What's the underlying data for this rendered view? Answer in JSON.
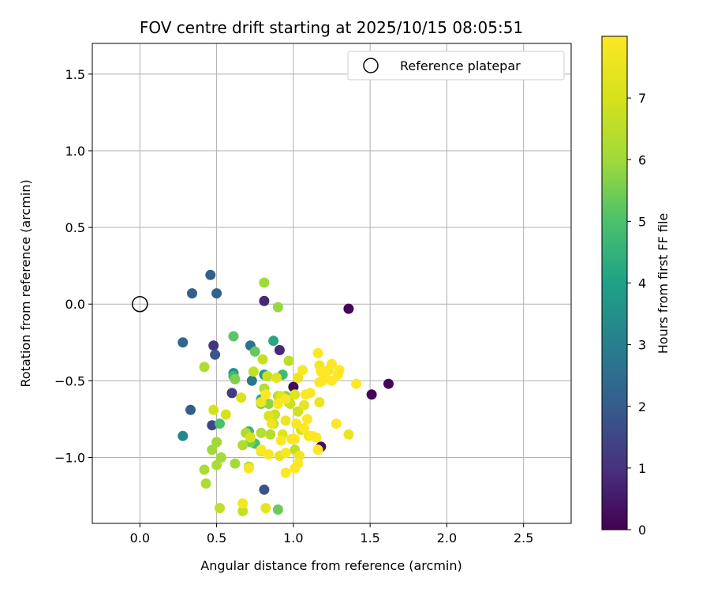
{
  "chart_data": {
    "type": "scatter",
    "title": "FOV centre drift starting at 2025/10/15 08:05:51",
    "xlabel": "Angular distance from reference (arcmin)",
    "ylabel": "Rotation from reference (arcmin)",
    "xlim": [
      -0.31,
      2.81
    ],
    "ylim": [
      -1.43,
      1.7
    ],
    "x_ticks": [
      0.0,
      0.5,
      1.0,
      1.5,
      2.0,
      2.5
    ],
    "x_tick_labels": [
      "0.0",
      "0.5",
      "1.0",
      "1.5",
      "2.0",
      "2.5"
    ],
    "y_ticks": [
      -1.0,
      -0.5,
      0.0,
      0.5,
      1.0,
      1.5
    ],
    "y_tick_labels": [
      "−1.0",
      "−0.5",
      "0.0",
      "0.5",
      "1.0",
      "1.5"
    ],
    "grid": true,
    "legend": {
      "position": "top-right",
      "entries": [
        "Reference platepar"
      ]
    },
    "reference_point": {
      "x": 0.0,
      "y": 0.0,
      "label": "Reference platepar"
    },
    "colorbar": {
      "label": "Hours from first FF file",
      "colormap": "viridis",
      "min": 0,
      "max": 8,
      "ticks": [
        0,
        1,
        2,
        3,
        4,
        5,
        6,
        7
      ],
      "tick_labels": [
        "0",
        "1",
        "2",
        "3",
        "4",
        "5",
        "6",
        "7"
      ]
    },
    "points": [
      [
        1.36,
        -0.03,
        0.1
      ],
      [
        1.51,
        -0.59,
        0.1
      ],
      [
        1.62,
        -0.52,
        0.1
      ],
      [
        1.0,
        -0.54,
        0.2
      ],
      [
        1.18,
        -0.93,
        0.3
      ],
      [
        0.81,
        0.02,
        0.8
      ],
      [
        0.91,
        -0.3,
        0.8
      ],
      [
        0.48,
        -0.27,
        1.0
      ],
      [
        0.6,
        -0.58,
        1.2
      ],
      [
        0.47,
        -0.79,
        1.5
      ],
      [
        0.81,
        -1.21,
        1.8
      ],
      [
        0.49,
        -0.33,
        1.9
      ],
      [
        0.33,
        -0.69,
        2.0
      ],
      [
        0.34,
        0.07,
        2.1
      ],
      [
        0.46,
        0.19,
        2.1
      ],
      [
        0.5,
        0.07,
        2.2
      ],
      [
        0.28,
        -0.25,
        2.3
      ],
      [
        0.72,
        -0.27,
        2.6
      ],
      [
        0.73,
        -0.5,
        2.8
      ],
      [
        0.28,
        -0.86,
        3.3
      ],
      [
        0.61,
        -0.45,
        3.6
      ],
      [
        0.81,
        -0.46,
        3.7
      ],
      [
        0.87,
        -0.24,
        4.2
      ],
      [
        0.79,
        -0.62,
        4.4
      ],
      [
        0.71,
        -0.83,
        4.6
      ],
      [
        0.61,
        -0.47,
        4.7
      ],
      [
        0.93,
        -0.46,
        4.8
      ],
      [
        0.75,
        -0.91,
        4.9
      ],
      [
        0.52,
        -0.78,
        5.0
      ],
      [
        0.61,
        -0.21,
        5.2
      ],
      [
        0.75,
        -0.31,
        5.3
      ],
      [
        0.79,
        -0.65,
        5.4
      ],
      [
        0.9,
        -1.34,
        5.4
      ],
      [
        0.72,
        -0.9,
        5.5
      ],
      [
        0.62,
        -0.49,
        5.6
      ],
      [
        0.95,
        -0.6,
        5.7
      ],
      [
        0.97,
        -0.64,
        5.7
      ],
      [
        0.84,
        -0.65,
        5.8
      ],
      [
        0.9,
        -0.02,
        5.9
      ],
      [
        0.81,
        0.14,
        6.0
      ],
      [
        0.5,
        -0.9,
        6.0
      ],
      [
        0.47,
        -0.95,
        6.0
      ],
      [
        0.53,
        -1.0,
        6.1
      ],
      [
        0.62,
        -1.04,
        6.1
      ],
      [
        0.42,
        -1.08,
        6.2
      ],
      [
        0.43,
        -1.17,
        6.2
      ],
      [
        0.5,
        -1.05,
        6.2
      ],
      [
        0.67,
        -0.92,
        6.3
      ],
      [
        0.71,
        -1.06,
        6.3
      ],
      [
        0.69,
        -0.84,
        6.3
      ],
      [
        0.42,
        -0.41,
        6.3
      ],
      [
        0.79,
        -0.84,
        6.4
      ],
      [
        0.85,
        -0.85,
        6.4
      ],
      [
        0.87,
        -0.78,
        6.4
      ],
      [
        0.81,
        -0.55,
        6.4
      ],
      [
        0.9,
        -0.6,
        6.5
      ],
      [
        0.97,
        -0.37,
        6.5
      ],
      [
        1.01,
        -0.95,
        6.6
      ],
      [
        0.52,
        -1.33,
        6.6
      ],
      [
        0.67,
        -1.35,
        6.7
      ],
      [
        0.74,
        -0.44,
        6.7
      ],
      [
        0.8,
        -0.36,
        6.7
      ],
      [
        0.83,
        -0.47,
        6.8
      ],
      [
        0.88,
        -0.72,
        6.8
      ],
      [
        0.98,
        -0.65,
        6.8
      ],
      [
        1.03,
        -0.7,
        6.9
      ],
      [
        1.05,
        -0.82,
        7.0
      ],
      [
        0.48,
        -0.69,
        7.0
      ],
      [
        0.56,
        -0.72,
        7.0
      ],
      [
        0.66,
        -0.61,
        7.1
      ],
      [
        0.72,
        -0.87,
        7.1
      ],
      [
        0.79,
        -0.96,
        7.1
      ],
      [
        0.84,
        -0.73,
        7.2
      ],
      [
        0.92,
        -0.6,
        7.3
      ],
      [
        0.89,
        -0.48,
        7.3
      ],
      [
        0.93,
        -0.85,
        7.3
      ],
      [
        1.01,
        -0.59,
        7.3
      ],
      [
        0.82,
        -1.33,
        7.4
      ],
      [
        0.91,
        -0.99,
        7.4
      ],
      [
        1.07,
        -0.66,
        7.4
      ],
      [
        1.17,
        -0.64,
        7.5
      ],
      [
        1.36,
        -0.85,
        7.5
      ],
      [
        1.03,
        -0.48,
        7.5
      ],
      [
        0.79,
        -0.64,
        7.6
      ],
      [
        0.86,
        -0.78,
        7.6
      ],
      [
        0.95,
        -0.76,
        7.6
      ],
      [
        0.99,
        -0.88,
        7.7
      ],
      [
        1.04,
        -0.99,
        7.7
      ],
      [
        1.1,
        -0.86,
        7.7
      ],
      [
        1.17,
        -0.4,
        7.8
      ],
      [
        1.23,
        -0.43,
        7.8
      ],
      [
        0.67,
        -1.3,
        7.8
      ],
      [
        0.71,
        -1.07,
        7.8
      ],
      [
        0.84,
        -0.98,
        7.9
      ],
      [
        0.95,
        -0.97,
        7.9
      ],
      [
        0.95,
        -0.62,
        7.9
      ],
      [
        1.02,
        -0.78,
        7.9
      ],
      [
        1.06,
        -0.43,
        7.9
      ],
      [
        1.11,
        -0.58,
        8.0
      ],
      [
        1.16,
        -0.32,
        8.0
      ],
      [
        1.17,
        -0.51,
        8.0
      ],
      [
        1.18,
        -0.44,
        8.0
      ],
      [
        1.21,
        -0.45,
        8.0
      ],
      [
        1.25,
        -0.39,
        8.0
      ],
      [
        1.29,
        -0.46,
        8.0
      ],
      [
        1.3,
        -0.43,
        8.0
      ],
      [
        1.41,
        -0.52,
        8.0
      ],
      [
        1.28,
        -0.78,
        8.0
      ],
      [
        1.15,
        -0.87,
        8.0
      ],
      [
        1.07,
        -0.81,
        8.0
      ],
      [
        1.01,
        -0.88,
        8.0
      ],
      [
        0.95,
        -1.1,
        8.0
      ],
      [
        1.01,
        -1.07,
        8.0
      ],
      [
        1.03,
        -1.04,
        8.0
      ],
      [
        1.16,
        -0.95,
        8.0
      ],
      [
        1.08,
        -0.59,
        8.0
      ],
      [
        0.9,
        -0.65,
        8.0
      ],
      [
        0.82,
        -0.59,
        8.0
      ],
      [
        0.79,
        -0.95,
        8.0
      ],
      [
        1.19,
        -0.5,
        8.0
      ],
      [
        1.25,
        -0.5,
        8.0
      ],
      [
        1.12,
        -0.86,
        8.0
      ],
      [
        0.92,
        -0.89,
        8.0
      ],
      [
        1.09,
        -0.75,
        8.0
      ]
    ]
  }
}
